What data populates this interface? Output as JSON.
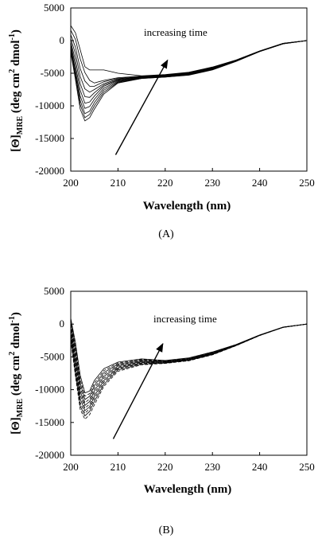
{
  "chart_data": [
    {
      "type": "line",
      "panel_label": "(A)",
      "xlabel": "Wavelength (nm)",
      "ylabel_main": "[Θ]",
      "ylabel_sub": "MRE",
      "ylabel_units": " (deg cm",
      "ylabel_sup1": "2",
      "ylabel_units2": " dmol",
      "ylabel_sup2": "-1",
      "ylabel_close": ")",
      "xlim": [
        200,
        250
      ],
      "ylim": [
        -20000,
        5000
      ],
      "x_ticks": [
        "200",
        "210",
        "220",
        "230",
        "240",
        "250"
      ],
      "y_ticks": [
        "5000",
        "0",
        "-5000",
        "-10000",
        "-15000",
        "-20000"
      ],
      "annotation": "increasing time",
      "arrow": {
        "from": [
          209.5,
          -17500
        ],
        "to": [
          220.5,
          -3000
        ]
      },
      "line_style": "solid",
      "series_count": 10,
      "x": [
        200,
        201,
        202,
        203,
        204,
        205,
        207,
        210,
        215,
        220,
        225,
        230,
        235,
        240,
        245,
        250
      ],
      "series": [
        {
          "values": [
            -1800,
            -6000,
            -10500,
            -12300,
            -11800,
            -10500,
            -8200,
            -6500,
            -5800,
            -5600,
            -5300,
            -4500,
            -3200,
            -1700,
            -500,
            0
          ]
        },
        {
          "values": [
            -1500,
            -5500,
            -9800,
            -11800,
            -11300,
            -10000,
            -7900,
            -6400,
            -5800,
            -5600,
            -5250,
            -4450,
            -3150,
            -1680,
            -490,
            0
          ]
        },
        {
          "values": [
            -1200,
            -5000,
            -9200,
            -11200,
            -10800,
            -9500,
            -7600,
            -6300,
            -5750,
            -5550,
            -5200,
            -4400,
            -3120,
            -1660,
            -480,
            0
          ]
        },
        {
          "values": [
            -900,
            -4500,
            -8500,
            -10400,
            -10100,
            -9000,
            -7300,
            -6200,
            -5700,
            -5500,
            -5150,
            -4350,
            -3100,
            -1650,
            -470,
            0
          ]
        },
        {
          "values": [
            -600,
            -3800,
            -7600,
            -9600,
            -9400,
            -8500,
            -7000,
            -6100,
            -5650,
            -5450,
            -5100,
            -4300,
            -3080,
            -1640,
            -460,
            0
          ]
        },
        {
          "values": [
            -200,
            -3000,
            -6600,
            -8600,
            -8700,
            -8000,
            -6800,
            -6000,
            -5600,
            -5400,
            -5050,
            -4250,
            -3060,
            -1630,
            -450,
            0
          ]
        },
        {
          "values": [
            300,
            -2000,
            -5500,
            -7400,
            -7900,
            -7500,
            -6600,
            -5900,
            -5550,
            -5350,
            -5000,
            -4200,
            -3040,
            -1620,
            -440,
            0
          ]
        },
        {
          "values": [
            900,
            -1000,
            -4300,
            -6200,
            -7000,
            -7000,
            -6300,
            -5800,
            -5500,
            -5300,
            -4950,
            -4150,
            -3020,
            -1610,
            -430,
            0
          ]
        },
        {
          "values": [
            1600,
            200,
            -2800,
            -4900,
            -6100,
            -6500,
            -6100,
            -5700,
            -5450,
            -5250,
            -4900,
            -4100,
            -3000,
            -1600,
            -420,
            0
          ]
        },
        {
          "values": [
            2300,
            1200,
            -1400,
            -4000,
            -4500,
            -4500,
            -4500,
            -5000,
            -5400,
            -5200,
            -4850,
            -4050,
            -2980,
            -1590,
            -410,
            0
          ]
        }
      ]
    },
    {
      "type": "line",
      "panel_label": "(B)",
      "xlabel": "Wavelength (nm)",
      "ylabel_main": "[Θ]",
      "ylabel_sub": "MRE",
      "ylabel_units": " (deg cm",
      "ylabel_sup1": "2",
      "ylabel_units2": " dmol",
      "ylabel_sup2": "-1",
      "ylabel_close": ")",
      "xlim": [
        200,
        250
      ],
      "ylim": [
        -20000,
        5000
      ],
      "x_ticks": [
        "200",
        "210",
        "220",
        "230",
        "240",
        "250"
      ],
      "y_ticks": [
        "5000",
        "0",
        "-5000",
        "-10000",
        "-15000",
        "-20000"
      ],
      "annotation": "increasing time",
      "arrow": {
        "from": [
          209,
          -17500
        ],
        "to": [
          219.5,
          -3000
        ]
      },
      "line_style": "dashed",
      "series_count": 10,
      "x": [
        200,
        201,
        202,
        203,
        204,
        205,
        207,
        210,
        215,
        220,
        225,
        230,
        235,
        240,
        245,
        250
      ],
      "series": [
        {
          "values": [
            -2500,
            -8000,
            -13000,
            -14500,
            -13800,
            -12300,
            -9500,
            -7200,
            -6200,
            -6000,
            -5600,
            -4700,
            -3300,
            -1750,
            -500,
            0
          ]
        },
        {
          "values": [
            -2100,
            -7500,
            -12500,
            -14000,
            -13300,
            -11800,
            -9200,
            -7000,
            -6100,
            -5950,
            -5550,
            -4650,
            -3280,
            -1740,
            -495,
            0
          ]
        },
        {
          "values": [
            -1700,
            -7000,
            -12000,
            -13600,
            -12900,
            -11400,
            -8900,
            -6850,
            -6000,
            -5900,
            -5500,
            -4600,
            -3260,
            -1730,
            -490,
            0
          ]
        },
        {
          "values": [
            -1300,
            -6400,
            -11400,
            -13200,
            -12600,
            -11000,
            -8600,
            -6700,
            -5900,
            -5850,
            -5450,
            -4550,
            -3240,
            -1720,
            -485,
            0
          ]
        },
        {
          "values": [
            -900,
            -5800,
            -10800,
            -12800,
            -12200,
            -10600,
            -8300,
            -6550,
            -5800,
            -5800,
            -5400,
            -4500,
            -3220,
            -1710,
            -480,
            0
          ]
        },
        {
          "values": [
            -500,
            -5200,
            -10200,
            -12400,
            -11800,
            -10200,
            -8000,
            -6400,
            -5700,
            -5750,
            -5350,
            -4450,
            -3200,
            -1700,
            -475,
            0
          ]
        },
        {
          "values": [
            -100,
            -4600,
            -9600,
            -12000,
            -11400,
            -9800,
            -7700,
            -6250,
            -5600,
            -5700,
            -5300,
            -4400,
            -3180,
            -1690,
            -470,
            0
          ]
        },
        {
          "values": [
            300,
            -4000,
            -9000,
            -11500,
            -11000,
            -9400,
            -7400,
            -6100,
            -5500,
            -5650,
            -5250,
            -4350,
            -3160,
            -1680,
            -465,
            0
          ]
        },
        {
          "values": [
            700,
            -3400,
            -8400,
            -11000,
            -10600,
            -9000,
            -7100,
            -5950,
            -5400,
            -5600,
            -5200,
            -4300,
            -3140,
            -1670,
            -460,
            0
          ]
        },
        {
          "values": [
            900,
            -2800,
            -7800,
            -10500,
            -10200,
            -8600,
            -6800,
            -5800,
            -5300,
            -5550,
            -5150,
            -4250,
            -3120,
            -1660,
            -455,
            0
          ]
        }
      ]
    }
  ]
}
